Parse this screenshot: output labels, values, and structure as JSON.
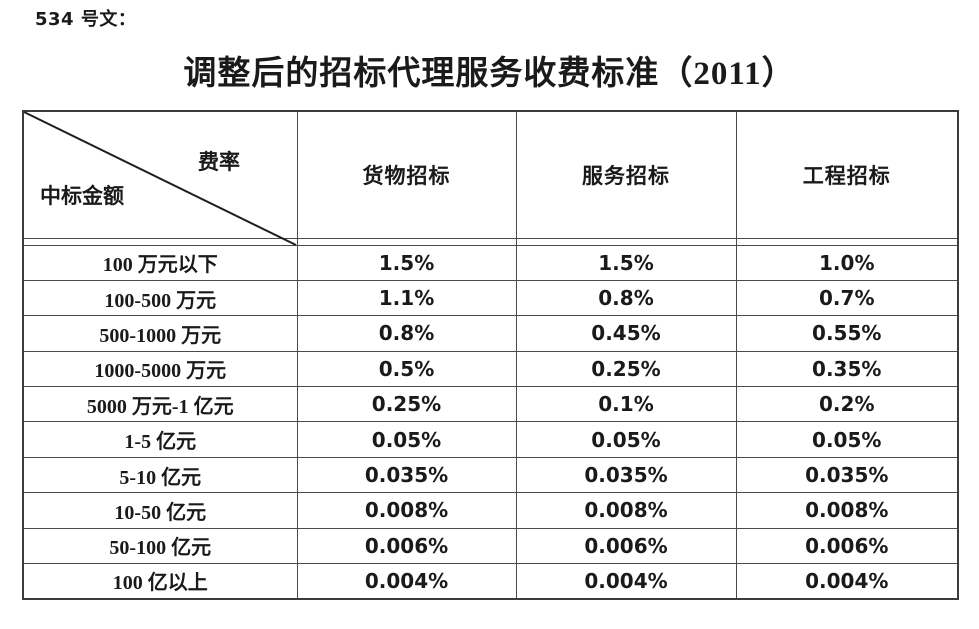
{
  "page": {
    "doc_ref": "534 号文：",
    "title": "调整后的招标代理服务收费标准（2011）"
  },
  "table": {
    "corner": {
      "top_right_label": "费率",
      "bottom_left_label": "中标金额"
    },
    "columns": [
      "货物招标",
      "服务招标",
      "工程招标"
    ],
    "rows": [
      {
        "label": "100 万元以下",
        "values": [
          "1.5%",
          "1.5%",
          "1.0%"
        ]
      },
      {
        "label": "100-500 万元",
        "values": [
          "1.1%",
          "0.8%",
          "0.7%"
        ]
      },
      {
        "label": "500-1000 万元",
        "values": [
          "0.8%",
          "0.45%",
          "0.55%"
        ]
      },
      {
        "label": "1000-5000 万元",
        "values": [
          "0.5%",
          "0.25%",
          "0.35%"
        ]
      },
      {
        "label": "5000 万元-1 亿元",
        "values": [
          "0.25%",
          "0.1%",
          "0.2%"
        ]
      },
      {
        "label": "1-5 亿元",
        "values": [
          "0.05%",
          "0.05%",
          "0.05%"
        ]
      },
      {
        "label": "5-10 亿元",
        "values": [
          "0.035%",
          "0.035%",
          "0.035%"
        ]
      },
      {
        "label": "10-50 亿元",
        "values": [
          "0.008%",
          "0.008%",
          "0.008%"
        ]
      },
      {
        "label": "50-100 亿元",
        "values": [
          "0.006%",
          "0.006%",
          "0.006%"
        ]
      },
      {
        "label": "100 亿以上",
        "values": [
          "0.004%",
          "0.004%",
          "0.004%"
        ]
      }
    ]
  },
  "colors": {
    "text": "#1a1a1a",
    "border_inner": "#4a4a4a",
    "border_outer": "#3c3c3c",
    "background": "#ffffff",
    "diagonal_line": "#1f1f1f"
  }
}
